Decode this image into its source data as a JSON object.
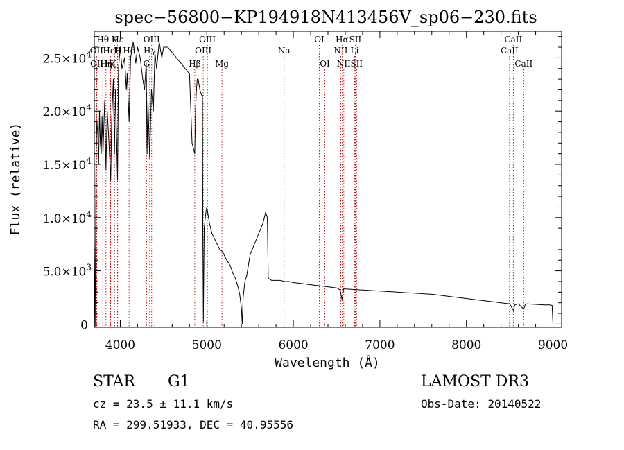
{
  "chart_data": {
    "type": "line",
    "title": "spec−56800−KP194918N413456V_sp06−230.fits",
    "xlabel": "Wavelength (Å)",
    "ylabel": "Flux (relative)",
    "xlim": [
      3700,
      9100
    ],
    "ylim": [
      -300,
      27500
    ],
    "x_ticks": [
      4000,
      5000,
      6000,
      7000,
      8000,
      9000
    ],
    "x_tick_labels": [
      "4000",
      "5000",
      "6000",
      "7000",
      "8000",
      "9000"
    ],
    "y_ticks": [
      {
        "value": 0,
        "mantissa": "0",
        "exponent": ""
      },
      {
        "value": 5000,
        "mantissa": "5.0",
        "exponent": "3"
      },
      {
        "value": 10000,
        "mantissa": "1.0",
        "exponent": "4"
      },
      {
        "value": 15000,
        "mantissa": "1.5",
        "exponent": "4"
      },
      {
        "value": 20000,
        "mantissa": "2.0",
        "exponent": "4"
      },
      {
        "value": 25000,
        "mantissa": "2.5",
        "exponent": "4"
      }
    ],
    "series": [
      {
        "name": "spectrum",
        "x": [
          3700,
          3710,
          3720,
          3730,
          3740,
          3750,
          3760,
          3770,
          3780,
          3790,
          3800,
          3820,
          3835,
          3850,
          3870,
          3890,
          3900,
          3920,
          3933,
          3945,
          3968,
          3980,
          4000,
          4020,
          4050,
          4070,
          4080,
          4102,
          4120,
          4150,
          4180,
          4200,
          4230,
          4260,
          4280,
          4300,
          4310,
          4320,
          4340,
          4360,
          4383,
          4400,
          4420,
          4450,
          4480,
          4500,
          4550,
          4600,
          4650,
          4700,
          4750,
          4800,
          4830,
          4861,
          4870,
          4880,
          4890,
          4900,
          4920,
          4940,
          4950,
          4955,
          4960,
          4970,
          4990,
          5000,
          5010,
          5030,
          5060,
          5090,
          5120,
          5150,
          5183,
          5200,
          5230,
          5270,
          5300,
          5330,
          5360,
          5380,
          5400,
          5410,
          5420,
          5440,
          5460,
          5480,
          5500,
          5550,
          5600,
          5650,
          5680,
          5700,
          5710,
          5750,
          5800,
          5850,
          5900,
          5950,
          6000,
          6100,
          6200,
          6300,
          6400,
          6500,
          6540,
          6563,
          6580,
          6600,
          6700,
          6800,
          6900,
          7000,
          7100,
          7200,
          7300,
          7400,
          7500,
          7600,
          7700,
          7800,
          7900,
          8000,
          8100,
          8200,
          8300,
          8400,
          8500,
          8542,
          8560,
          8600,
          8662,
          8680,
          8700,
          8800,
          8900,
          8960,
          8990,
          9000
        ],
        "y": [
          8000,
          -200,
          16000,
          19000,
          18000,
          15000,
          20000,
          17000,
          16000,
          19500,
          16000,
          21000,
          14500,
          20000,
          17000,
          13500,
          19000,
          23000,
          16000,
          22000,
          13500,
          24000,
          26000,
          24000,
          25000,
          22000,
          23500,
          19000,
          25000,
          26500,
          24500,
          26000,
          25000,
          23000,
          22000,
          24500,
          16000,
          21000,
          15500,
          22000,
          20000,
          25500,
          24000,
          26500,
          25000,
          26000,
          26000,
          25500,
          25000,
          24500,
          24000,
          23500,
          17000,
          16000,
          20000,
          22000,
          23000,
          23000,
          22000,
          21500,
          21500,
          8000,
          200,
          9000,
          10500,
          11000,
          10500,
          9500,
          8500,
          8000,
          7500,
          7000,
          6800,
          6500,
          6000,
          5500,
          4800,
          4300,
          3500,
          2800,
          1500,
          0,
          2500,
          4000,
          4500,
          5500,
          6500,
          7500,
          8500,
          9500,
          10500,
          10000,
          4300,
          4100,
          4100,
          4100,
          4000,
          4000,
          3900,
          3800,
          3700,
          3600,
          3500,
          3400,
          3200,
          2300,
          3300,
          3300,
          3250,
          3200,
          3150,
          3100,
          3050,
          3000,
          2950,
          2900,
          2850,
          2800,
          2700,
          2600,
          2500,
          2400,
          2300,
          2200,
          2100,
          2000,
          1900,
          1300,
          1800,
          1900,
          1400,
          1850,
          1900,
          1850,
          1800,
          1800,
          1750,
          0
        ]
      }
    ],
    "lines": [
      {
        "label": "Hθ",
        "wave": 3798,
        "row": 0
      },
      {
        "label": "OII",
        "wave": 3727,
        "row": 1
      },
      {
        "label": "OII",
        "wave": 3729,
        "row": 2
      },
      {
        "label": "K",
        "wave": 3934,
        "row": 0
      },
      {
        "label": "Hε",
        "wave": 3970,
        "row": 0
      },
      {
        "label": "Hη",
        "wave": 3835,
        "row": 2
      },
      {
        "label": "HeI",
        "wave": 3889,
        "row": 1
      },
      {
        "label": "H",
        "wave": 3968,
        "row": 1
      },
      {
        "label": "Hζ",
        "wave": 3889,
        "row": 2
      },
      {
        "label": "Hδ",
        "wave": 4102,
        "row": 1
      },
      {
        "label": "OIII",
        "wave": 4363,
        "row": 0
      },
      {
        "label": "Hγ",
        "wave": 4340,
        "row": 1
      },
      {
        "label": "G",
        "wave": 4304,
        "row": 2
      },
      {
        "label": "Hβ",
        "wave": 4861,
        "row": 2
      },
      {
        "label": "OIII",
        "wave": 5007,
        "row": 0
      },
      {
        "label": "OIII",
        "wave": 4959,
        "row": 1
      },
      {
        "label": "Mg",
        "wave": 5175,
        "row": 2
      },
      {
        "label": "Na",
        "wave": 5893,
        "row": 1
      },
      {
        "label": "OI",
        "wave": 6300,
        "row": 0
      },
      {
        "label": "OI",
        "wave": 6364,
        "row": 2
      },
      {
        "label": "Hα",
        "wave": 6563,
        "row": 0
      },
      {
        "label": "NII",
        "wave": 6548,
        "row": 1
      },
      {
        "label": "NII",
        "wave": 6583,
        "row": 2
      },
      {
        "label": "SII",
        "wave": 6716,
        "row": 0
      },
      {
        "label": "Li",
        "wave": 6708,
        "row": 1
      },
      {
        "label": "SII",
        "wave": 6731,
        "row": 2
      },
      {
        "label": "CaII",
        "wave": 8542,
        "row": 0
      },
      {
        "label": "CaII",
        "wave": 8498,
        "row": 1
      },
      {
        "label": "CaII",
        "wave": 8662,
        "row": 2
      }
    ]
  },
  "info": {
    "object_class": "STAR",
    "subclass": "G1",
    "survey": "LAMOST DR3",
    "redshift_line": "cz = 23.5 ± 11.1 km/s",
    "obs_date_line": "Obs-Date: 20140522",
    "coords_line": "RA = 299.51933, DEC =  40.95556"
  }
}
